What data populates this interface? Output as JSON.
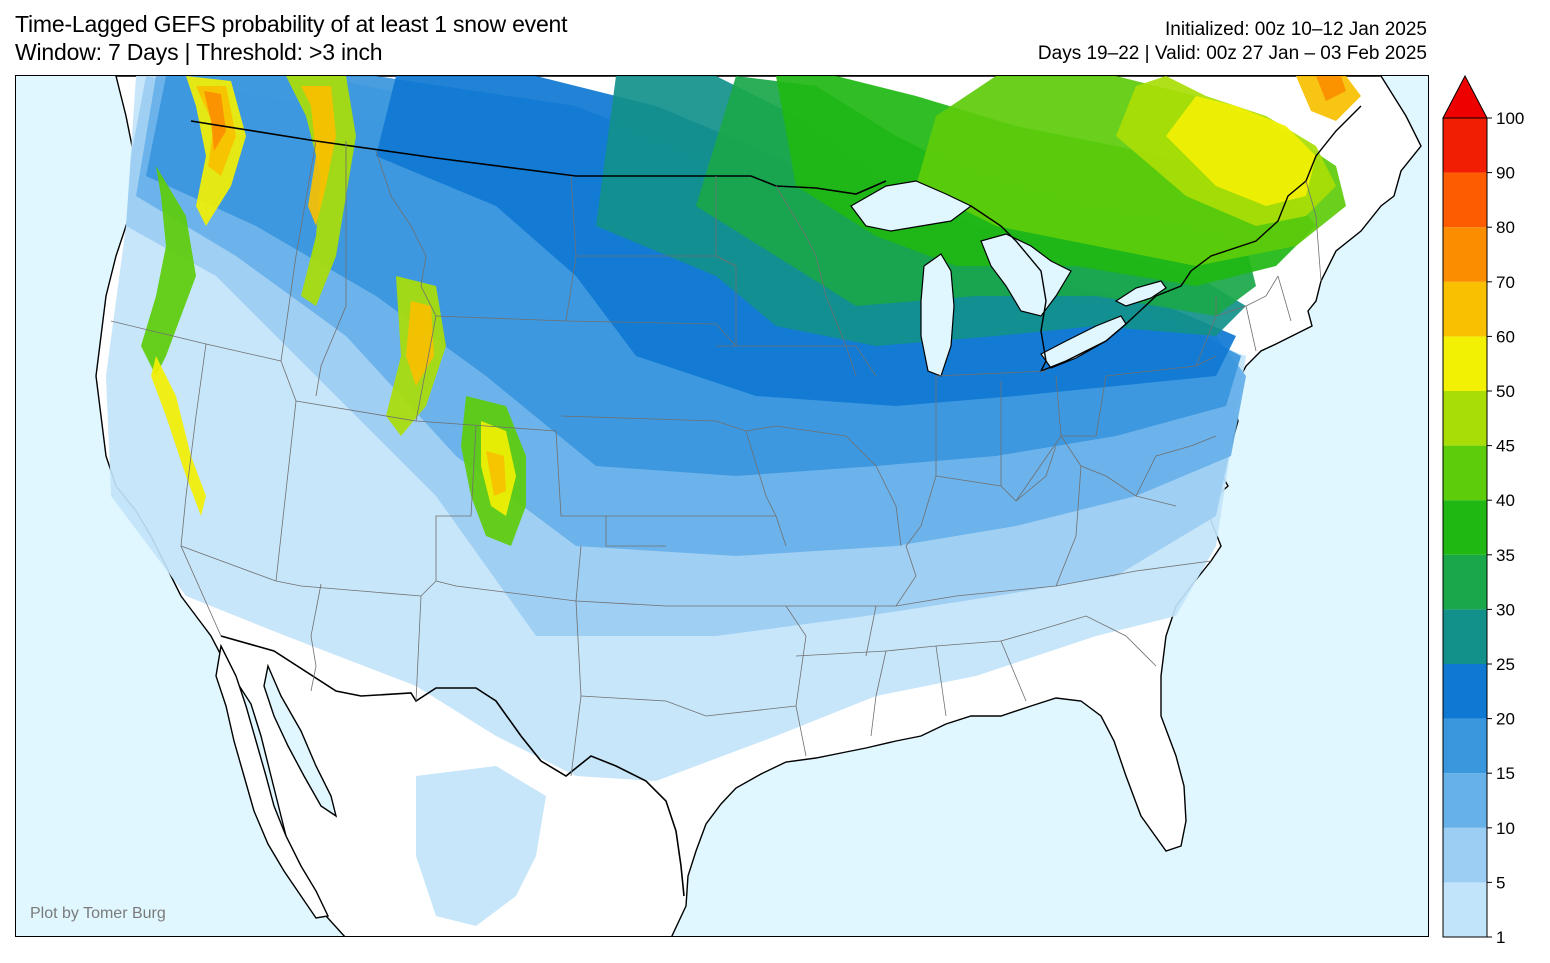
{
  "header": {
    "title_line1": "Time-Lagged GEFS probability of at least 1 snow event",
    "title_line2": "Window: 7 Days | Threshold: >3 inch",
    "init_line": "Initialized: 00z 10–12 Jan 2025",
    "valid_line": "Days 19–22 | Valid: 00z 27 Jan – 03 Feb 2025"
  },
  "credit": "Plot by Tomer Burg",
  "colors": {
    "ocean": "#e0f7ff",
    "land": "#ffffff",
    "coast": "#000000",
    "state_border": "#707070"
  },
  "colorbar": {
    "levels": [
      "1",
      "5",
      "10",
      "15",
      "20",
      "25",
      "30",
      "35",
      "40",
      "45",
      "50",
      "60",
      "70",
      "80",
      "90",
      "100"
    ],
    "colors": [
      "#c2e4fa",
      "#9ccdf3",
      "#67b1e9",
      "#3a96dd",
      "#0f78d2",
      "#12908a",
      "#1aa74a",
      "#1fb712",
      "#5dcc0a",
      "#a9dd07",
      "#f2f003",
      "#f8c000",
      "#fb8e00",
      "#fd5c00",
      "#f11e04"
    ],
    "extend_color": "#ee0000"
  }
}
